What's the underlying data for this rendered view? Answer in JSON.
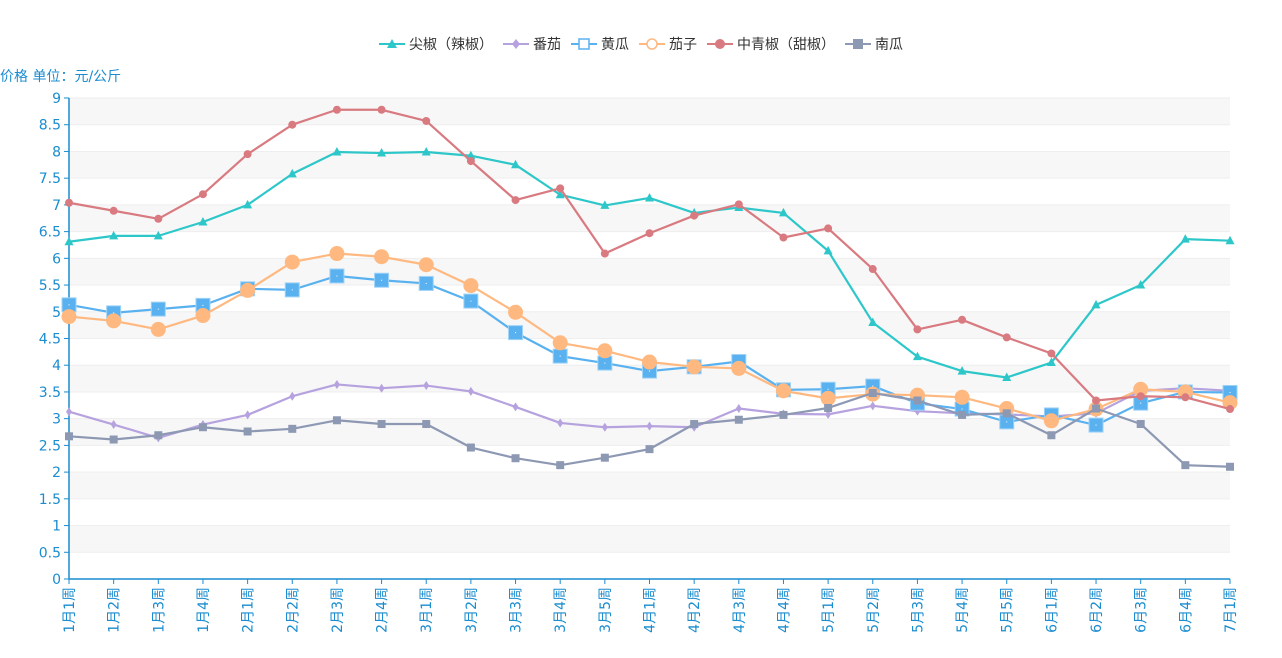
{
  "chart_data": {
    "type": "line",
    "ylabel": "价格 单位：元/公斤",
    "ylim": [
      0,
      9
    ],
    "yticks": [
      "0",
      "0.5",
      "1",
      "1.5",
      "2",
      "2.5",
      "3",
      "3.5",
      "4",
      "4.5",
      "5",
      "5.5",
      "6",
      "6.5",
      "7",
      "7.5",
      "8",
      "8.5",
      "9"
    ],
    "legend_position": "top-center",
    "grid": true,
    "categories": [
      "1月1周",
      "1月2周",
      "1月3周",
      "1月4周",
      "2月1周",
      "2月2周",
      "2月3周",
      "2月4周",
      "3月1周",
      "3月2周",
      "3月3周",
      "3月4周",
      "3月5周",
      "4月1周",
      "4月2周",
      "4月3周",
      "4月4周",
      "5月1周",
      "5月2周",
      "5月3周",
      "5月4周",
      "5月5周",
      "6月1周",
      "6月2周",
      "6月3周",
      "6月4周",
      "7月1周"
    ],
    "series": [
      {
        "name": "尖椒（辣椒）",
        "color": "#2ec7c9",
        "marker": "triangle",
        "values": [
          6.31,
          6.42,
          6.42,
          6.68,
          7.0,
          7.58,
          7.99,
          7.97,
          7.99,
          7.92,
          7.75,
          7.19,
          6.99,
          7.13,
          6.85,
          6.95,
          6.85,
          6.14,
          4.8,
          4.16,
          3.89,
          3.77,
          4.05,
          5.13,
          5.5,
          6.36,
          6.33
        ]
      },
      {
        "name": "番茄",
        "color": "#b6a2de",
        "marker": "diamond",
        "values": [
          3.13,
          2.89,
          2.64,
          2.89,
          3.07,
          3.42,
          3.64,
          3.57,
          3.62,
          3.51,
          3.22,
          2.92,
          2.84,
          2.86,
          2.84,
          3.19,
          3.09,
          3.08,
          3.24,
          3.14,
          3.1,
          3.08,
          3.04,
          3.1,
          3.52,
          3.57,
          3.52
        ]
      },
      {
        "name": "黄瓜",
        "color": "#5ab1ef",
        "marker": "square-empty",
        "values": [
          5.13,
          4.98,
          5.05,
          5.12,
          5.43,
          5.41,
          5.67,
          5.59,
          5.53,
          5.2,
          4.61,
          4.17,
          4.04,
          3.89,
          3.97,
          4.07,
          3.54,
          3.55,
          3.61,
          3.29,
          3.18,
          2.94,
          3.07,
          2.88,
          3.29,
          3.5,
          3.49
        ]
      },
      {
        "name": "茄子",
        "color": "#ffb980",
        "marker": "circle-empty",
        "values": [
          4.91,
          4.83,
          4.67,
          4.93,
          5.4,
          5.93,
          6.09,
          6.03,
          5.88,
          5.49,
          4.99,
          4.42,
          4.27,
          4.06,
          3.97,
          3.94,
          3.52,
          3.38,
          3.46,
          3.44,
          3.4,
          3.19,
          2.96,
          3.18,
          3.55,
          3.5,
          3.3
        ]
      },
      {
        "name": "中青椒（甜椒）",
        "color": "#d87a80",
        "marker": "circle",
        "values": [
          7.04,
          6.89,
          6.74,
          7.2,
          7.95,
          8.5,
          8.78,
          8.78,
          8.57,
          7.82,
          7.09,
          7.31,
          6.09,
          6.47,
          6.8,
          7.01,
          6.39,
          6.56,
          5.8,
          4.67,
          4.85,
          4.52,
          4.22,
          3.34,
          3.42,
          3.4,
          3.18
        ]
      },
      {
        "name": "南瓜",
        "color": "#8d98b3",
        "marker": "square",
        "values": [
          2.67,
          2.61,
          2.69,
          2.84,
          2.76,
          2.81,
          2.97,
          2.9,
          2.9,
          2.46,
          2.26,
          2.13,
          2.27,
          2.43,
          2.9,
          2.98,
          3.07,
          3.2,
          3.48,
          3.34,
          3.07,
          3.1,
          2.69,
          3.19,
          2.9,
          2.13,
          2.1
        ]
      }
    ]
  }
}
